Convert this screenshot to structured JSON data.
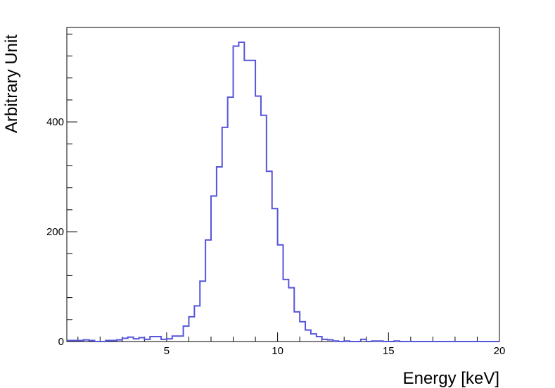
{
  "chart_data": {
    "type": "histogram",
    "title": "",
    "xlabel": "Energy [keV]",
    "ylabel": "Arbitrary Unit",
    "xlim": [
      0.5,
      20
    ],
    "ylim": [
      0,
      572
    ],
    "grid": false,
    "line_color": "#5555dd",
    "x_tick_labels": [
      "5",
      "10",
      "15",
      "20"
    ],
    "y_tick_labels": [
      "0",
      "200",
      "400"
    ],
    "bins": {
      "start": 0.5,
      "width": 0.25,
      "values": [
        2,
        2,
        2,
        3,
        2,
        0,
        0,
        2,
        2,
        3,
        6,
        8,
        5,
        7,
        4,
        9,
        9,
        4,
        5,
        10,
        10,
        28,
        45,
        65,
        110,
        185,
        265,
        318,
        390,
        445,
        538,
        545,
        512,
        512,
        447,
        412,
        310,
        242,
        176,
        113,
        98,
        54,
        36,
        21,
        14,
        9,
        4,
        3,
        1,
        0,
        1,
        0,
        0,
        4,
        0,
        1,
        1,
        0,
        0,
        1,
        0,
        0,
        0,
        0,
        0,
        0,
        0,
        0,
        0,
        0,
        0,
        0,
        0,
        0,
        0,
        0,
        0,
        0
      ]
    }
  }
}
